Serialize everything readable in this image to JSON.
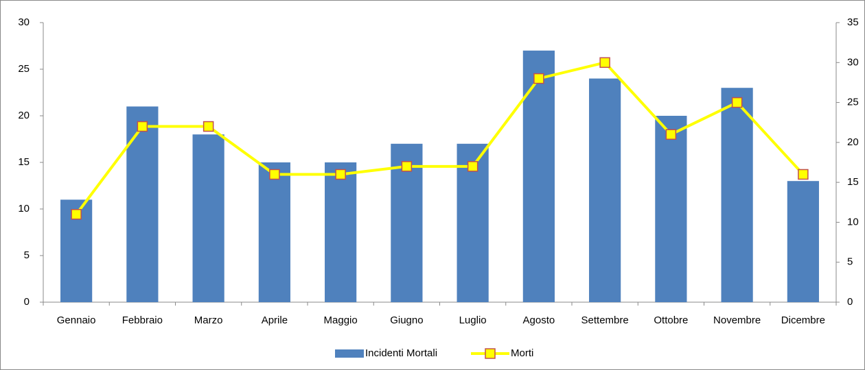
{
  "chart_data": {
    "type": "bar",
    "categories": [
      "Gennaio",
      "Febbraio",
      "Marzo",
      "Aprile",
      "Maggio",
      "Giugno",
      "Luglio",
      "Agosto",
      "Settembre",
      "Ottobre",
      "Novembre",
      "Dicembre"
    ],
    "series": [
      {
        "name": "Incidenti Mortali",
        "type": "bar",
        "color": "#4f81bd",
        "values": [
          11,
          21,
          18,
          15,
          15,
          17,
          17,
          27,
          24,
          20,
          23,
          13
        ]
      },
      {
        "name": "Morti",
        "type": "line",
        "color": "#ffff00",
        "marker_edge": "#c0504d",
        "axis": "y2",
        "values": [
          11,
          22,
          22,
          16,
          16,
          17,
          17,
          28,
          30,
          21,
          25,
          16
        ]
      }
    ],
    "ylim": [
      0,
      30
    ],
    "yticks": [
      0,
      5,
      10,
      15,
      20,
      25,
      30
    ],
    "y2lim": [
      0,
      35
    ],
    "y2ticks": [
      0,
      5,
      10,
      15,
      20,
      25,
      30,
      35
    ],
    "grid": false,
    "legend": "bottom"
  }
}
